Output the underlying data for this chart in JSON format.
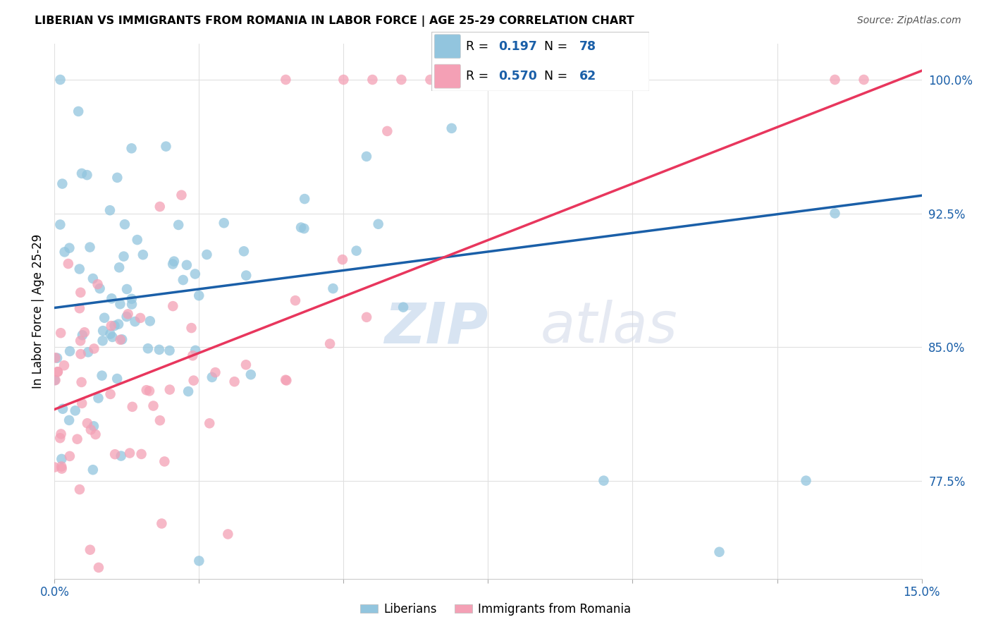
{
  "title": "LIBERIAN VS IMMIGRANTS FROM ROMANIA IN LABOR FORCE | AGE 25-29 CORRELATION CHART",
  "source": "Source: ZipAtlas.com",
  "ylabel_label": "In Labor Force | Age 25-29",
  "legend_label1": "Liberians",
  "legend_label2": "Immigrants from Romania",
  "R1": "0.197",
  "N1": "78",
  "R2": "0.570",
  "N2": "62",
  "blue_color": "#92c5de",
  "pink_color": "#f4a0b5",
  "blue_line_color": "#1a5fa8",
  "pink_line_color": "#e8365d",
  "watermark_zip": "ZIP",
  "watermark_atlas": "atlas",
  "xlim": [
    0.0,
    0.15
  ],
  "ylim": [
    0.72,
    1.02
  ],
  "xticks": [
    0.0,
    0.025,
    0.05,
    0.075,
    0.1,
    0.125,
    0.15
  ],
  "xtick_labels": [
    "0.0%",
    "",
    "",
    "",
    "",
    "",
    "15.0%"
  ],
  "yticks": [
    0.775,
    0.85,
    0.925,
    1.0
  ],
  "ytick_labels": [
    "77.5%",
    "85.0%",
    "92.5%",
    "100.0%"
  ],
  "blue_line_x": [
    0.0,
    0.15
  ],
  "blue_line_y": [
    0.872,
    0.935
  ],
  "pink_line_x": [
    0.0,
    0.15
  ],
  "pink_line_y": [
    0.815,
    1.005
  ],
  "figsize": [
    14.06,
    8.92
  ],
  "dpi": 100
}
